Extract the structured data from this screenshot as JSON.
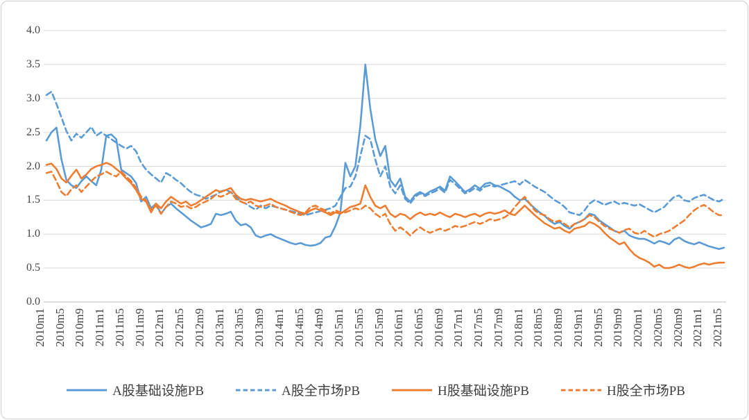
{
  "chart_data": {
    "type": "line",
    "title": "",
    "xlabel": "",
    "ylabel": "",
    "grid": true,
    "legend_position": "bottom",
    "ylim": [
      0,
      4
    ],
    "y_ticks": [
      "4.0",
      "3.5",
      "3.0",
      "2.5",
      "2.0",
      "1.5",
      "1.0",
      "0.5",
      "0.0"
    ],
    "x_count": 137,
    "x_tick_step_months": 4,
    "x_tick_labels": [
      "2010m1",
      "2010m5",
      "2010m9",
      "2011m1",
      "2011m5",
      "2011m9",
      "2012m1",
      "2012m5",
      "2012m9",
      "2013m1",
      "2013m5",
      "2013m9",
      "2014m1",
      "2014m5",
      "2014m9",
      "2015m1",
      "2015m5",
      "2015m9",
      "2016m1",
      "2016m5",
      "2016m9",
      "2017m1",
      "2017m5",
      "2017m9",
      "2018m1",
      "2018m5",
      "2018m9",
      "2019m1",
      "2019m5",
      "2019m9",
      "2020m1",
      "2020m5",
      "2020m9",
      "2021m1",
      "2021m5"
    ],
    "colors": {
      "blue": "#5B9BD5",
      "orange": "#ED7D31",
      "gridline": "#D9D9D9",
      "axis_line": "#BFBFBF",
      "label_text": "#404040"
    },
    "series": [
      {
        "name": "A股基础设施PB",
        "color": "#5B9BD5",
        "style": "solid",
        "values": [
          2.38,
          2.5,
          2.57,
          2.1,
          1.8,
          1.72,
          1.68,
          1.78,
          1.85,
          1.78,
          1.72,
          1.95,
          2.45,
          2.47,
          2.4,
          1.95,
          1.9,
          1.85,
          1.75,
          1.48,
          1.55,
          1.38,
          1.45,
          1.3,
          1.4,
          1.45,
          1.38,
          1.32,
          1.26,
          1.2,
          1.15,
          1.1,
          1.12,
          1.15,
          1.3,
          1.28,
          1.3,
          1.33,
          1.2,
          1.13,
          1.15,
          1.1,
          0.98,
          0.95,
          0.98,
          1.0,
          0.96,
          0.93,
          0.9,
          0.87,
          0.85,
          0.87,
          0.84,
          0.83,
          0.84,
          0.87,
          0.95,
          0.97,
          1.12,
          1.32,
          2.05,
          1.85,
          2.0,
          2.6,
          3.5,
          2.85,
          2.4,
          2.15,
          2.3,
          1.8,
          1.7,
          1.82,
          1.55,
          1.48,
          1.58,
          1.62,
          1.58,
          1.63,
          1.66,
          1.7,
          1.64,
          1.85,
          1.78,
          1.7,
          1.62,
          1.66,
          1.72,
          1.67,
          1.74,
          1.76,
          1.72,
          1.7,
          1.66,
          1.62,
          1.55,
          1.5,
          1.52,
          1.45,
          1.38,
          1.32,
          1.27,
          1.2,
          1.15,
          1.18,
          1.12,
          1.08,
          1.15,
          1.18,
          1.22,
          1.3,
          1.28,
          1.2,
          1.15,
          1.1,
          1.05,
          1.02,
          1.05,
          0.98,
          0.95,
          0.93,
          0.93,
          0.9,
          0.86,
          0.9,
          0.88,
          0.85,
          0.92,
          0.95,
          0.9,
          0.87,
          0.85,
          0.88,
          0.85,
          0.82,
          0.8,
          0.78,
          0.8
        ]
      },
      {
        "name": "A股全市场PB",
        "color": "#5B9BD5",
        "style": "dashed",
        "values": [
          3.05,
          3.1,
          2.92,
          2.72,
          2.52,
          2.38,
          2.48,
          2.42,
          2.5,
          2.58,
          2.45,
          2.5,
          2.45,
          2.4,
          2.35,
          2.3,
          2.26,
          2.3,
          2.22,
          2.05,
          1.95,
          1.88,
          1.82,
          1.76,
          1.9,
          1.86,
          1.8,
          1.75,
          1.68,
          1.62,
          1.58,
          1.56,
          1.52,
          1.55,
          1.58,
          1.63,
          1.65,
          1.62,
          1.55,
          1.48,
          1.45,
          1.4,
          1.36,
          1.42,
          1.38,
          1.42,
          1.4,
          1.38,
          1.36,
          1.34,
          1.32,
          1.3,
          1.28,
          1.3,
          1.32,
          1.34,
          1.36,
          1.38,
          1.42,
          1.55,
          1.68,
          1.7,
          1.85,
          2.15,
          2.45,
          2.4,
          2.1,
          1.85,
          2.0,
          1.7,
          1.6,
          1.72,
          1.52,
          1.45,
          1.55,
          1.6,
          1.56,
          1.6,
          1.63,
          1.67,
          1.61,
          1.8,
          1.74,
          1.67,
          1.6,
          1.63,
          1.68,
          1.64,
          1.7,
          1.72,
          1.7,
          1.72,
          1.74,
          1.76,
          1.78,
          1.73,
          1.8,
          1.75,
          1.7,
          1.66,
          1.62,
          1.56,
          1.5,
          1.46,
          1.4,
          1.32,
          1.3,
          1.28,
          1.35,
          1.45,
          1.5,
          1.47,
          1.43,
          1.46,
          1.48,
          1.44,
          1.46,
          1.44,
          1.42,
          1.44,
          1.4,
          1.36,
          1.32,
          1.36,
          1.4,
          1.48,
          1.55,
          1.57,
          1.5,
          1.48,
          1.53,
          1.56,
          1.58,
          1.54,
          1.5,
          1.48,
          1.52
        ]
      },
      {
        "name": "H股基础设施PB",
        "color": "#ED7D31",
        "style": "solid",
        "values": [
          2.02,
          2.04,
          1.96,
          1.82,
          1.76,
          1.86,
          1.95,
          1.82,
          1.88,
          1.96,
          2.0,
          2.02,
          2.05,
          2.02,
          1.96,
          1.9,
          1.82,
          1.75,
          1.65,
          1.52,
          1.48,
          1.32,
          1.45,
          1.38,
          1.48,
          1.55,
          1.5,
          1.45,
          1.48,
          1.42,
          1.45,
          1.5,
          1.55,
          1.6,
          1.65,
          1.62,
          1.65,
          1.68,
          1.58,
          1.52,
          1.5,
          1.52,
          1.5,
          1.48,
          1.5,
          1.52,
          1.48,
          1.45,
          1.42,
          1.38,
          1.35,
          1.32,
          1.3,
          1.35,
          1.38,
          1.35,
          1.32,
          1.28,
          1.32,
          1.3,
          1.35,
          1.4,
          1.42,
          1.45,
          1.72,
          1.55,
          1.42,
          1.38,
          1.42,
          1.3,
          1.25,
          1.3,
          1.28,
          1.22,
          1.28,
          1.32,
          1.28,
          1.3,
          1.28,
          1.32,
          1.28,
          1.25,
          1.3,
          1.28,
          1.25,
          1.28,
          1.3,
          1.26,
          1.3,
          1.32,
          1.3,
          1.32,
          1.35,
          1.3,
          1.28,
          1.35,
          1.42,
          1.35,
          1.28,
          1.22,
          1.16,
          1.12,
          1.08,
          1.1,
          1.05,
          1.02,
          1.08,
          1.1,
          1.12,
          1.18,
          1.15,
          1.1,
          1.02,
          0.95,
          0.9,
          0.85,
          0.88,
          0.78,
          0.7,
          0.65,
          0.62,
          0.58,
          0.52,
          0.55,
          0.5,
          0.5,
          0.52,
          0.55,
          0.52,
          0.5,
          0.52,
          0.55,
          0.57,
          0.55,
          0.57,
          0.58,
          0.58
        ]
      },
      {
        "name": "H股全市场PB",
        "color": "#ED7D31",
        "style": "dashed",
        "values": [
          1.9,
          1.92,
          1.78,
          1.62,
          1.56,
          1.66,
          1.72,
          1.62,
          1.7,
          1.78,
          1.85,
          1.88,
          1.92,
          1.88,
          1.85,
          1.92,
          1.85,
          1.78,
          1.68,
          1.55,
          1.5,
          1.35,
          1.42,
          1.3,
          1.4,
          1.48,
          1.45,
          1.4,
          1.42,
          1.38,
          1.4,
          1.45,
          1.48,
          1.52,
          1.58,
          1.55,
          1.58,
          1.62,
          1.52,
          1.48,
          1.45,
          1.48,
          1.42,
          1.4,
          1.42,
          1.45,
          1.4,
          1.38,
          1.36,
          1.33,
          1.3,
          1.28,
          1.32,
          1.4,
          1.42,
          1.38,
          1.35,
          1.3,
          1.35,
          1.32,
          1.32,
          1.35,
          1.38,
          1.36,
          1.42,
          1.38,
          1.3,
          1.25,
          1.3,
          1.15,
          1.05,
          1.1,
          1.05,
          0.98,
          1.05,
          1.1,
          1.05,
          1.02,
          1.05,
          1.08,
          1.05,
          1.08,
          1.12,
          1.1,
          1.12,
          1.15,
          1.18,
          1.15,
          1.18,
          1.22,
          1.2,
          1.22,
          1.25,
          1.3,
          1.4,
          1.48,
          1.55,
          1.45,
          1.35,
          1.3,
          1.28,
          1.22,
          1.18,
          1.2,
          1.15,
          1.1,
          1.15,
          1.18,
          1.22,
          1.28,
          1.25,
          1.18,
          1.12,
          1.08,
          1.05,
          1.02,
          1.06,
          1.08,
          1.02,
          1.0,
          1.05,
          1.0,
          0.96,
          1.0,
          1.02,
          1.05,
          1.1,
          1.15,
          1.2,
          1.28,
          1.35,
          1.4,
          1.43,
          1.38,
          1.32,
          1.28,
          1.28
        ]
      }
    ]
  }
}
